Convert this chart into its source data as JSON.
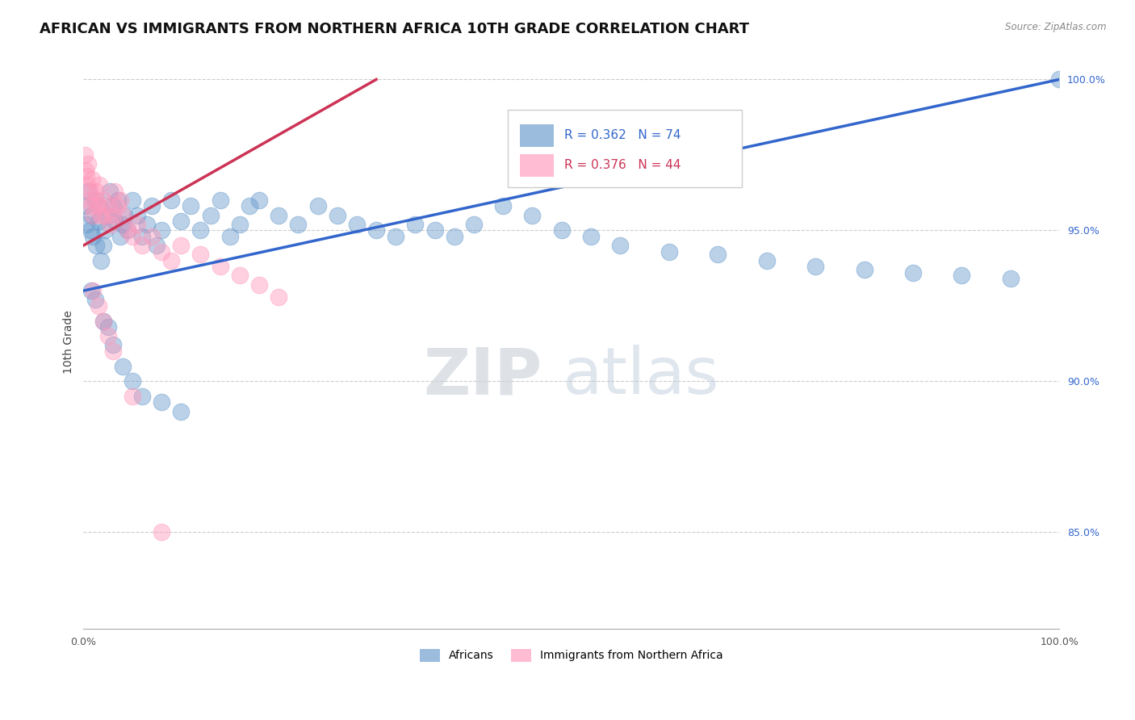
{
  "title": "AFRICAN VS IMMIGRANTS FROM NORTHERN AFRICA 10TH GRADE CORRELATION CHART",
  "source_text": "Source: ZipAtlas.com",
  "ylabel": "10th Grade",
  "xlim": [
    0.0,
    1.0
  ],
  "ylim": [
    0.818,
    1.008
  ],
  "x_tick_labels": [
    "0.0%",
    "100.0%"
  ],
  "x_tick_positions": [
    0.0,
    1.0
  ],
  "y_tick_labels": [
    "85.0%",
    "90.0%",
    "95.0%",
    "100.0%"
  ],
  "y_tick_positions": [
    0.85,
    0.9,
    0.95,
    1.0
  ],
  "legend_r_blue": "R = 0.362",
  "legend_n_blue": "N = 74",
  "legend_r_pink": "R = 0.376",
  "legend_n_pink": "N = 44",
  "legend_label_blue": "Africans",
  "legend_label_pink": "Immigrants from Northern Africa",
  "blue_color": "#6699CC",
  "pink_color": "#FF99BB",
  "trendline_blue_color": "#3366CC",
  "trendline_pink_color": "#CC3355",
  "watermark_text": "ZIPatlas",
  "background_color": "#FFFFFF",
  "title_fontsize": 13,
  "axis_label_fontsize": 10,
  "tick_fontsize": 9,
  "blue_scatter_x": [
    0.001,
    0.003,
    0.005,
    0.007,
    0.008,
    0.01,
    0.012,
    0.013,
    0.015,
    0.016,
    0.018,
    0.02,
    0.022,
    0.025,
    0.027,
    0.03,
    0.032,
    0.035,
    0.038,
    0.04,
    0.042,
    0.045,
    0.05,
    0.055,
    0.06,
    0.065,
    0.07,
    0.075,
    0.08,
    0.09,
    0.1,
    0.11,
    0.12,
    0.13,
    0.14,
    0.15,
    0.16,
    0.17,
    0.18,
    0.2,
    0.22,
    0.24,
    0.26,
    0.28,
    0.3,
    0.32,
    0.34,
    0.36,
    0.38,
    0.4,
    0.43,
    0.46,
    0.49,
    0.52,
    0.55,
    0.6,
    0.65,
    0.7,
    0.75,
    0.8,
    0.85,
    0.9,
    0.95,
    1.0,
    0.008,
    0.012,
    0.02,
    0.025,
    0.03,
    0.04,
    0.05,
    0.06,
    0.08,
    0.1
  ],
  "blue_scatter_y": [
    0.958,
    0.952,
    0.963,
    0.95,
    0.955,
    0.948,
    0.96,
    0.945,
    0.953,
    0.958,
    0.94,
    0.945,
    0.95,
    0.955,
    0.963,
    0.958,
    0.953,
    0.96,
    0.948,
    0.952,
    0.955,
    0.95,
    0.96,
    0.955,
    0.948,
    0.952,
    0.958,
    0.945,
    0.95,
    0.96,
    0.953,
    0.958,
    0.95,
    0.955,
    0.96,
    0.948,
    0.952,
    0.958,
    0.96,
    0.955,
    0.952,
    0.958,
    0.955,
    0.952,
    0.95,
    0.948,
    0.952,
    0.95,
    0.948,
    0.952,
    0.958,
    0.955,
    0.95,
    0.948,
    0.945,
    0.943,
    0.942,
    0.94,
    0.938,
    0.937,
    0.936,
    0.935,
    0.934,
    1.0,
    0.93,
    0.927,
    0.92,
    0.918,
    0.912,
    0.905,
    0.9,
    0.895,
    0.893,
    0.89
  ],
  "pink_scatter_x": [
    0.001,
    0.002,
    0.003,
    0.004,
    0.005,
    0.006,
    0.007,
    0.008,
    0.009,
    0.01,
    0.012,
    0.013,
    0.015,
    0.016,
    0.018,
    0.02,
    0.022,
    0.025,
    0.028,
    0.03,
    0.032,
    0.035,
    0.038,
    0.04,
    0.045,
    0.05,
    0.055,
    0.06,
    0.07,
    0.08,
    0.09,
    0.1,
    0.12,
    0.14,
    0.16,
    0.18,
    0.2,
    0.08,
    0.01,
    0.015,
    0.02,
    0.025,
    0.03,
    0.05
  ],
  "pink_scatter_y": [
    0.975,
    0.97,
    0.968,
    0.965,
    0.972,
    0.96,
    0.963,
    0.958,
    0.967,
    0.955,
    0.96,
    0.963,
    0.958,
    0.965,
    0.955,
    0.96,
    0.955,
    0.958,
    0.952,
    0.955,
    0.963,
    0.958,
    0.96,
    0.955,
    0.95,
    0.948,
    0.952,
    0.945,
    0.948,
    0.943,
    0.94,
    0.945,
    0.942,
    0.938,
    0.935,
    0.932,
    0.928,
    0.85,
    0.93,
    0.925,
    0.92,
    0.915,
    0.91,
    0.895
  ],
  "blue_trend_x": [
    0.0,
    1.0
  ],
  "blue_trend_y": [
    0.93,
    1.0
  ],
  "pink_trend_x": [
    0.0,
    0.3
  ],
  "pink_trend_y": [
    0.945,
    1.0
  ]
}
